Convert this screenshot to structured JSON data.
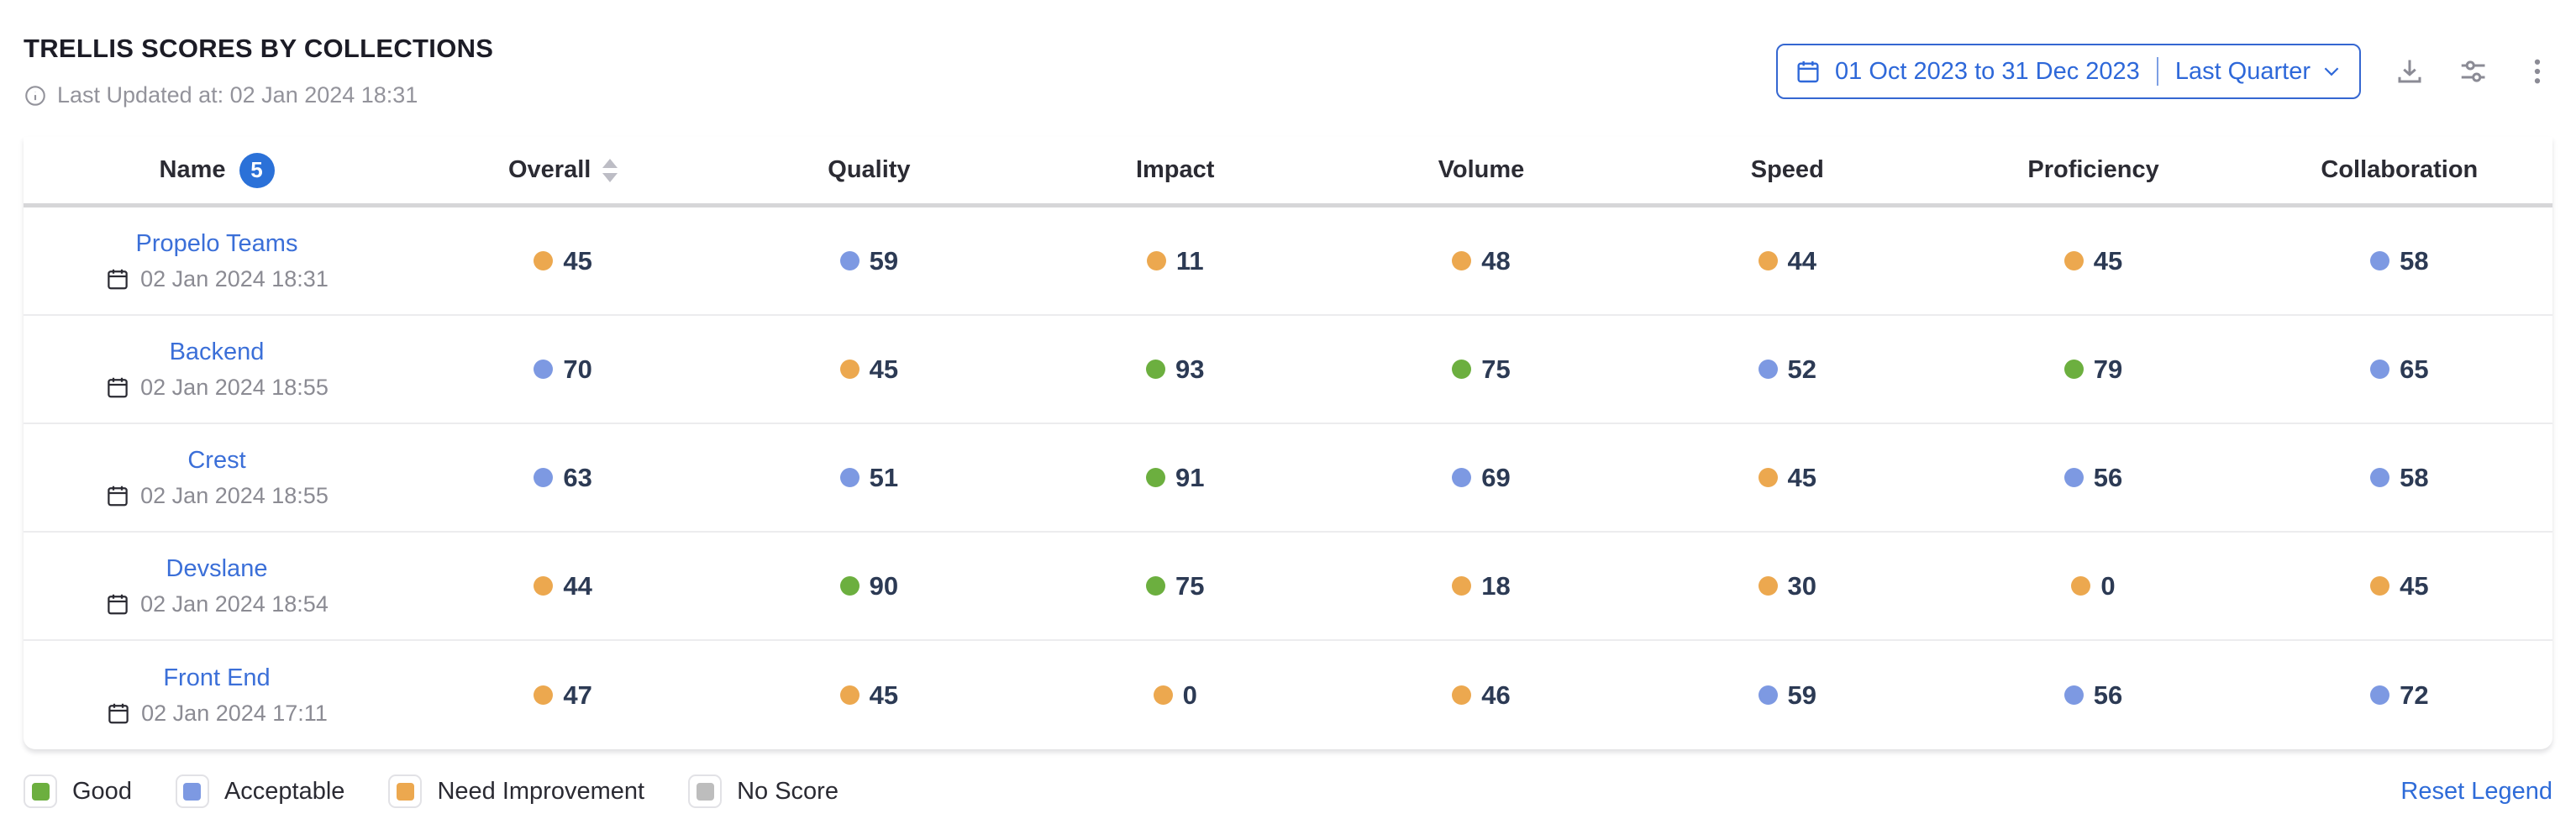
{
  "header": {
    "title": "TRELLIS SCORES BY COLLECTIONS",
    "last_updated": "Last Updated at: 02 Jan 2024 18:31",
    "date_range": {
      "range_label": "01 Oct 2023 to 31 Dec 2023",
      "preset_label": "Last Quarter"
    }
  },
  "table": {
    "columns": [
      "Name",
      "Overall",
      "Quality",
      "Impact",
      "Volume",
      "Speed",
      "Proficiency",
      "Collaboration"
    ],
    "name_badge_count": "5",
    "rows": [
      {
        "name": "Propelo Teams",
        "date": "02 Jan 2024 18:31",
        "scores": [
          {
            "value": "45",
            "status": "need-improvement"
          },
          {
            "value": "59",
            "status": "acceptable"
          },
          {
            "value": "11",
            "status": "need-improvement"
          },
          {
            "value": "48",
            "status": "need-improvement"
          },
          {
            "value": "44",
            "status": "need-improvement"
          },
          {
            "value": "45",
            "status": "need-improvement"
          },
          {
            "value": "58",
            "status": "acceptable"
          }
        ]
      },
      {
        "name": "Backend",
        "date": "02 Jan 2024 18:55",
        "scores": [
          {
            "value": "70",
            "status": "acceptable"
          },
          {
            "value": "45",
            "status": "need-improvement"
          },
          {
            "value": "93",
            "status": "good"
          },
          {
            "value": "75",
            "status": "good"
          },
          {
            "value": "52",
            "status": "acceptable"
          },
          {
            "value": "79",
            "status": "good"
          },
          {
            "value": "65",
            "status": "acceptable"
          }
        ]
      },
      {
        "name": "Crest",
        "date": "02 Jan 2024 18:55",
        "scores": [
          {
            "value": "63",
            "status": "acceptable"
          },
          {
            "value": "51",
            "status": "acceptable"
          },
          {
            "value": "91",
            "status": "good"
          },
          {
            "value": "69",
            "status": "acceptable"
          },
          {
            "value": "45",
            "status": "need-improvement"
          },
          {
            "value": "56",
            "status": "acceptable"
          },
          {
            "value": "58",
            "status": "acceptable"
          }
        ]
      },
      {
        "name": "Devslane",
        "date": "02 Jan 2024 18:54",
        "scores": [
          {
            "value": "44",
            "status": "need-improvement"
          },
          {
            "value": "90",
            "status": "good"
          },
          {
            "value": "75",
            "status": "good"
          },
          {
            "value": "18",
            "status": "need-improvement"
          },
          {
            "value": "30",
            "status": "need-improvement"
          },
          {
            "value": "0",
            "status": "need-improvement"
          },
          {
            "value": "45",
            "status": "need-improvement"
          }
        ]
      },
      {
        "name": "Front End",
        "date": "02 Jan 2024 17:11",
        "scores": [
          {
            "value": "47",
            "status": "need-improvement"
          },
          {
            "value": "45",
            "status": "need-improvement"
          },
          {
            "value": "0",
            "status": "need-improvement"
          },
          {
            "value": "46",
            "status": "need-improvement"
          },
          {
            "value": "59",
            "status": "acceptable"
          },
          {
            "value": "56",
            "status": "acceptable"
          },
          {
            "value": "72",
            "status": "acceptable"
          }
        ]
      }
    ]
  },
  "legend": {
    "items": [
      {
        "label": "Good",
        "status": "good"
      },
      {
        "label": "Acceptable",
        "status": "acceptable"
      },
      {
        "label": "Need Improvement",
        "status": "need-improvement"
      },
      {
        "label": "No Score",
        "status": "no-score"
      }
    ],
    "reset_label": "Reset Legend"
  },
  "colors": {
    "good": "#6caf3f",
    "acceptable": "#7d99e2",
    "need-improvement": "#eca84f",
    "no-score": "#bdbdbd",
    "link_blue": "#3b6fd8",
    "picker_blue": "#2e68d9",
    "value_text": "#2c3a54",
    "badge_blue": "#2b71d8"
  }
}
